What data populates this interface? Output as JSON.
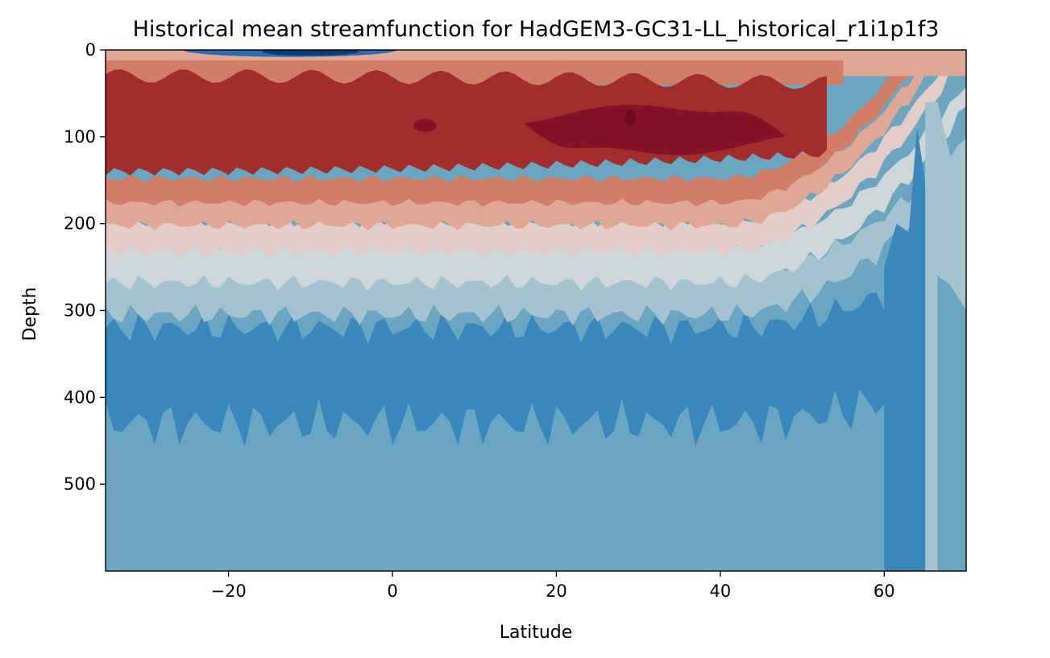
{
  "chart_data": {
    "type": "heatmap",
    "subtype": "filled-contour",
    "title": "Historical mean streamfunction for HadGEM3-GC31-LL_historical_r1i1p1f3",
    "xlabel": "Latitude",
    "ylabel": "Depth",
    "xlim": [
      -35,
      70
    ],
    "ylim": [
      600,
      0
    ],
    "y_inverted": true,
    "xticks": [
      -20,
      0,
      20,
      40,
      60
    ],
    "xtick_labels": [
      "−20",
      "0",
      "20",
      "40",
      "60"
    ],
    "yticks": [
      0,
      100,
      200,
      300,
      400,
      500
    ],
    "ytick_labels": [
      "0",
      "100",
      "200",
      "300",
      "400",
      "500"
    ],
    "colormap": "RdBu_r",
    "levels_colors": [
      "#0e3c78",
      "#2a6bb0",
      "#3a87bc",
      "#6aa5c2",
      "#a4c3d0",
      "#cfd6da",
      "#e4ccc8",
      "#e0a894",
      "#d07f66",
      "#bd5238",
      "#a32d2b",
      "#851126"
    ],
    "grid": false,
    "legend": "none",
    "features": [
      {
        "name": "surface negative cell",
        "lat_range": [
          -25,
          0
        ],
        "depth_range": [
          0,
          10
        ]
      },
      {
        "name": "upper positive core",
        "lat_range": [
          -35,
          55
        ],
        "depth_range": [
          40,
          150
        ]
      },
      {
        "name": "strongest maximum",
        "lat_range": [
          15,
          48
        ],
        "depth_range": [
          60,
          125
        ],
        "peak_lat": 29,
        "peak_depth": 80
      },
      {
        "name": "zero contour",
        "depth": 230
      },
      {
        "name": "deep weak negative region",
        "depth_range": [
          300,
          600
        ]
      }
    ]
  }
}
